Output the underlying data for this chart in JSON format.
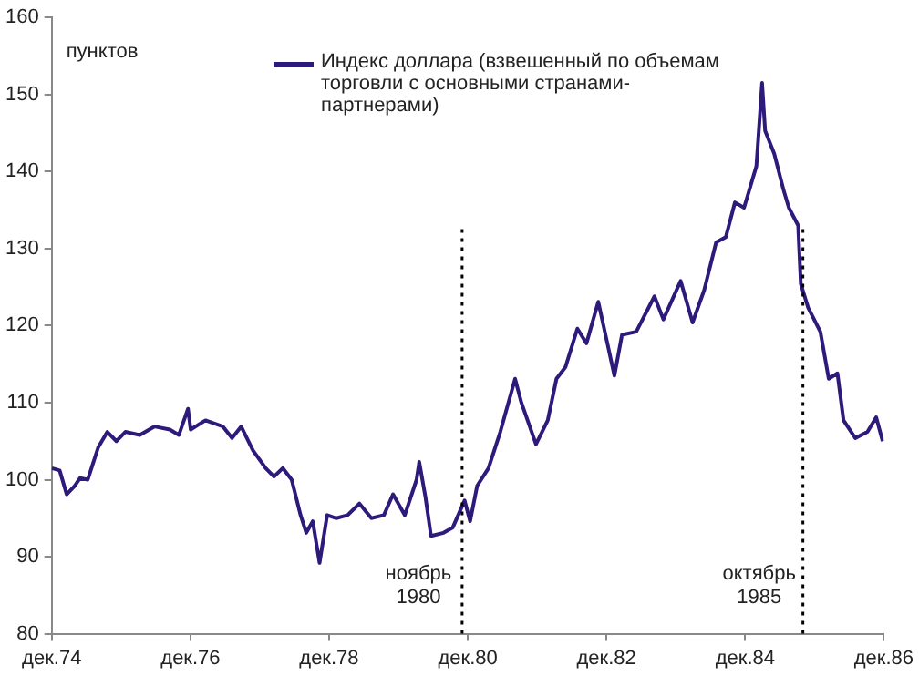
{
  "chart_data": {
    "type": "line",
    "ylabel": "пунктов",
    "legend": "top",
    "series": [
      {
        "name": "Индекс доллара (взвешенный по объемам торговли с основными странами-партнерами)",
        "color": "#2e1a7a",
        "x": [
          "1974-12-02",
          "1975-01-12",
          "1975-02-18",
          "1975-04-01",
          "1975-04-29",
          "1975-06-09",
          "1975-08-03",
          "1975-09-20",
          "1975-11-07",
          "1975-12-24",
          "1976-03-09",
          "1976-05-25",
          "1976-08-14",
          "1976-10-01",
          "1976-11-18",
          "1976-12-02",
          "1977-02-18",
          "1977-05-21",
          "1977-07-08",
          "1977-08-25",
          "1977-10-26",
          "1978-01-01",
          "1978-02-14",
          "1978-04-01",
          "1978-05-18",
          "1978-07-04",
          "1978-08-03",
          "1978-09-06",
          "1978-10-12",
          "1978-11-21",
          "1979-01-08",
          "1979-03-09",
          "1979-05-10",
          "1979-07-12",
          "1979-09-16",
          "1979-11-03",
          "1980-01-04",
          "1980-03-06",
          "1980-03-20",
          "1980-04-22",
          "1980-05-21",
          "1980-07-26",
          "1980-09-13",
          "1980-11-14",
          "1980-12-13",
          "1981-01-19",
          "1981-03-20",
          "1981-05-21",
          "1981-08-07",
          "1981-09-09",
          "1981-11-25",
          "1982-01-26",
          "1982-03-13",
          "1982-04-29",
          "1982-07-01",
          "1982-08-18",
          "1982-10-19",
          "1982-12-06",
          "1983-01-12",
          "1983-02-21",
          "1983-05-07",
          "1983-08-11",
          "1983-09-27",
          "1983-12-27",
          "1984-02-28",
          "1984-04-29",
          "1984-07-01",
          "1984-08-21",
          "1984-10-08",
          "1984-11-25",
          "1985-01-29",
          "1985-02-28",
          "1985-03-16",
          "1985-05-03",
          "1985-06-20",
          "1985-07-19",
          "1985-09-06",
          "1985-09-20",
          "1985-10-29",
          "1986-01-01",
          "1986-02-14",
          "1986-04-01",
          "1986-05-03",
          "1986-07-04",
          "1986-09-06",
          "1986-10-22",
          "1986-11-25"
        ],
        "values": [
          101.5,
          101.2,
          98.1,
          99.2,
          100.2,
          100,
          104.2,
          106.2,
          105,
          106.2,
          105.8,
          106.9,
          106.5,
          105.8,
          109.2,
          106.5,
          107.7,
          106.9,
          105.4,
          106.9,
          103.8,
          101.5,
          100.4,
          101.5,
          100,
          95.4,
          93.1,
          94.6,
          89.2,
          95.4,
          95,
          95.4,
          96.9,
          95,
          95.4,
          98.1,
          95.4,
          100,
          102.3,
          97.7,
          92.7,
          93.1,
          93.8,
          97.3,
          94.6,
          99.2,
          101.5,
          106.2,
          113.1,
          110,
          104.6,
          107.7,
          113.1,
          114.6,
          119.6,
          117.7,
          123.1,
          117.7,
          113.5,
          118.8,
          119.2,
          123.8,
          120.8,
          125.8,
          120.4,
          124.6,
          130.8,
          131.5,
          136,
          135.3,
          140.7,
          151.5,
          145.3,
          142.3,
          137.7,
          135.3,
          133,
          125.4,
          122.3,
          119.2,
          113.1,
          113.8,
          107.7,
          105.4,
          106.2,
          108.1,
          105
        ]
      }
    ],
    "xlim": [
      "1974-12-01",
      "1986-12-01"
    ],
    "xticks": [
      {
        "value": "1974-12-01",
        "label": "дек.74"
      },
      {
        "value": "1976-12-01",
        "label": "дек.76"
      },
      {
        "value": "1978-12-01",
        "label": "дек.78"
      },
      {
        "value": "1980-12-01",
        "label": "дек.80"
      },
      {
        "value": "1982-12-01",
        "label": "дек.82"
      },
      {
        "value": "1984-12-01",
        "label": "дек.84"
      },
      {
        "value": "1986-12-01",
        "label": "дек.86"
      }
    ],
    "ylim": [
      80,
      160
    ],
    "yticks": [
      80,
      90,
      100,
      110,
      120,
      130,
      140,
      150,
      160
    ],
    "ref_lines": [
      {
        "axis": "x",
        "value": "1980-11",
        "label": "ноябрь 1980",
        "line_style": "dotted",
        "color": "#000000"
      },
      {
        "axis": "x",
        "value": "1985-10",
        "label": "октябрь 1985",
        "line_style": "dotted",
        "color": "#000000"
      }
    ],
    "grid": false,
    "marker": "none",
    "line_style": "solid"
  }
}
